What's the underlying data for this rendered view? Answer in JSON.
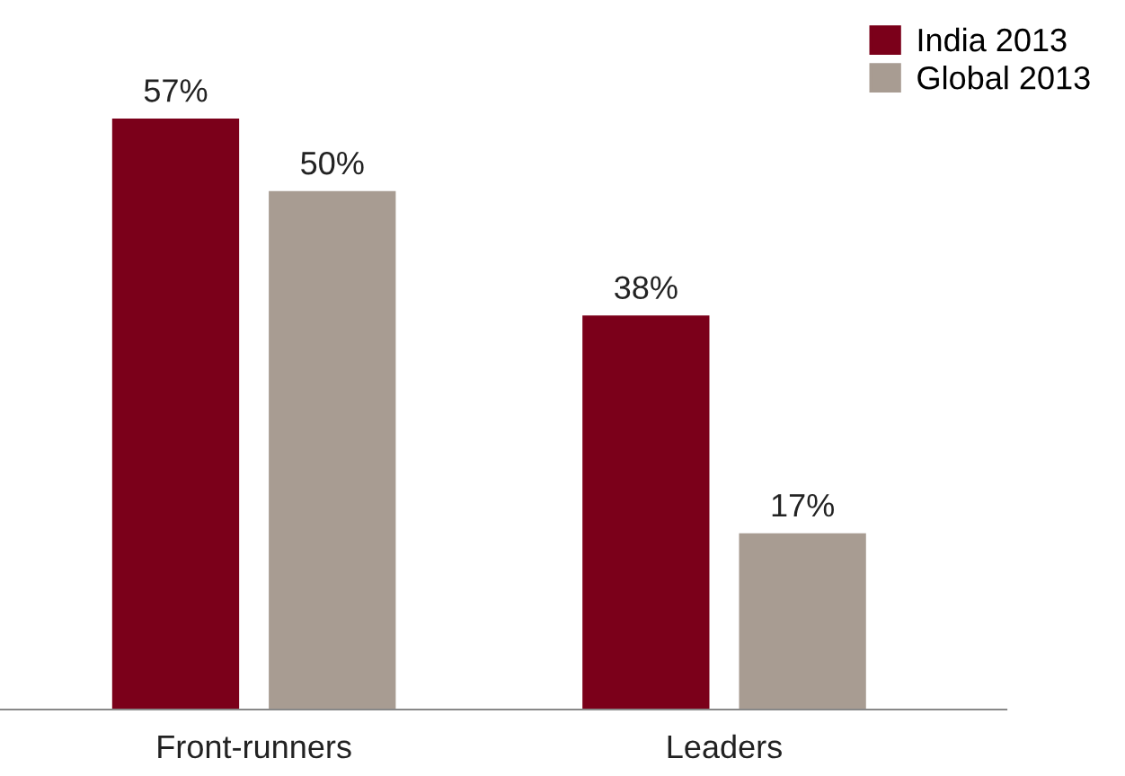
{
  "chart_data": {
    "type": "bar",
    "categories": [
      "Front-runners",
      "Leaders"
    ],
    "series": [
      {
        "name": "India 2013",
        "color": "#7b001a",
        "values": [
          57,
          38
        ],
        "value_labels": [
          "57%",
          "38%"
        ]
      },
      {
        "name": "Global 2013",
        "color": "#a89c92",
        "values": [
          50,
          17
        ],
        "value_labels": [
          "50%",
          "17%"
        ]
      }
    ],
    "legend": "top right",
    "grid": false
  }
}
